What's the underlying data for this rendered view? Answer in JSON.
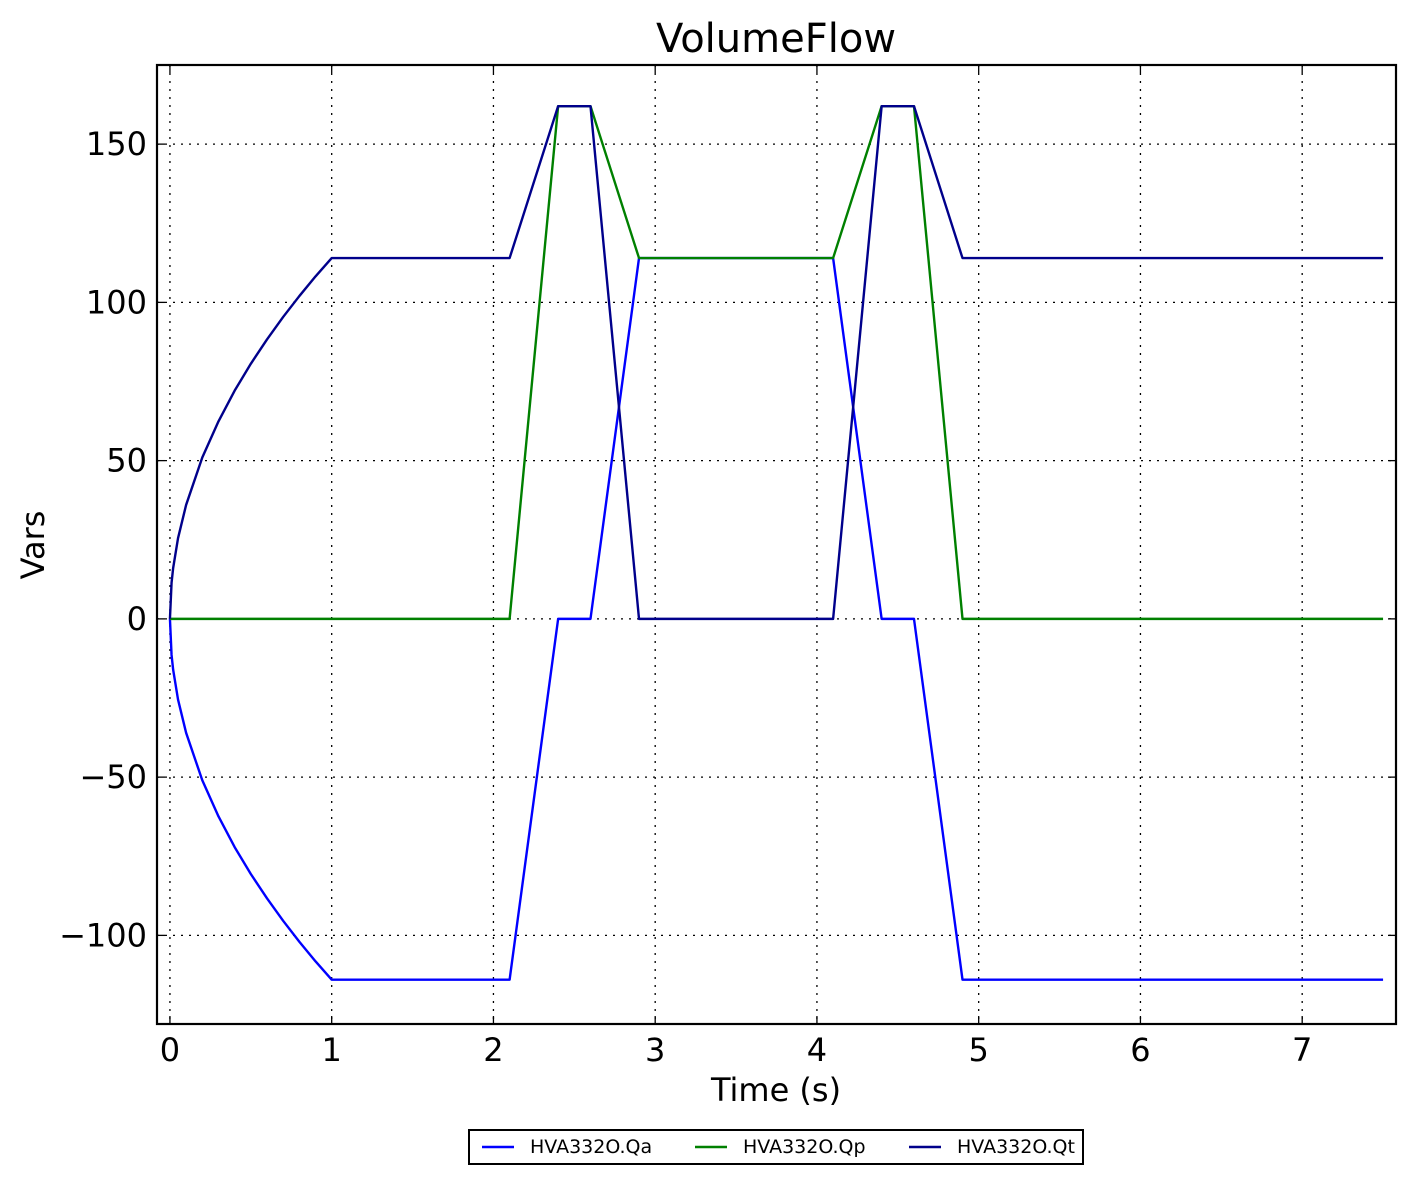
{
  "chart_data": {
    "type": "line",
    "title": "VolumeFlow",
    "xlabel": "Time (s)",
    "ylabel": "Vars",
    "xlim": [
      -0.08,
      7.58
    ],
    "ylim": [
      -128,
      175
    ],
    "xticks": [
      0,
      1,
      2,
      3,
      4,
      5,
      6,
      7
    ],
    "xtick_labels": [
      "0",
      "1",
      "2",
      "3",
      "4",
      "5",
      "6",
      "7"
    ],
    "yticks": [
      -100,
      -50,
      0,
      50,
      100,
      150
    ],
    "ytick_labels": [
      "−100",
      "−50",
      "0",
      "50",
      "100",
      "150"
    ],
    "grid": true,
    "legend_position": "bottom-center",
    "series": [
      {
        "name": "HVA332O.Qa",
        "color": "#0000ff",
        "x": [
          0,
          0.01,
          0.02,
          0.05,
          0.1,
          0.2,
          0.3,
          0.4,
          0.5,
          0.6,
          0.7,
          0.8,
          0.9,
          1.0,
          2.1,
          2.4,
          2.6,
          2.9,
          4.1,
          4.4,
          4.6,
          4.9,
          7.5
        ],
        "y": [
          0,
          -11.4,
          -16.1,
          -25.5,
          -36.0,
          -51.0,
          -62.4,
          -72.1,
          -80.6,
          -88.3,
          -95.4,
          -102.0,
          -108.2,
          -114,
          -114,
          0,
          0,
          114,
          114,
          0,
          0,
          -114,
          -114
        ]
      },
      {
        "name": "HVA332O.Qp",
        "color": "#008000",
        "x": [
          0,
          2.1,
          2.4,
          2.6,
          2.9,
          4.1,
          4.4,
          4.6,
          4.9,
          7.5
        ],
        "y": [
          0,
          0,
          162,
          162,
          114,
          114,
          162,
          162,
          0,
          0
        ]
      },
      {
        "name": "HVA332O.Qt",
        "color": "#00008b",
        "x": [
          0,
          0.01,
          0.02,
          0.05,
          0.1,
          0.2,
          0.3,
          0.4,
          0.5,
          0.6,
          0.7,
          0.8,
          0.9,
          1.0,
          2.1,
          2.4,
          2.6,
          2.9,
          4.1,
          4.4,
          4.6,
          4.9,
          7.5
        ],
        "y": [
          0,
          11.4,
          16.1,
          25.5,
          36.0,
          51.0,
          62.4,
          72.1,
          80.6,
          88.3,
          95.4,
          102.0,
          108.2,
          114,
          114,
          162,
          162,
          0,
          0,
          162,
          162,
          114,
          114
        ]
      }
    ]
  }
}
